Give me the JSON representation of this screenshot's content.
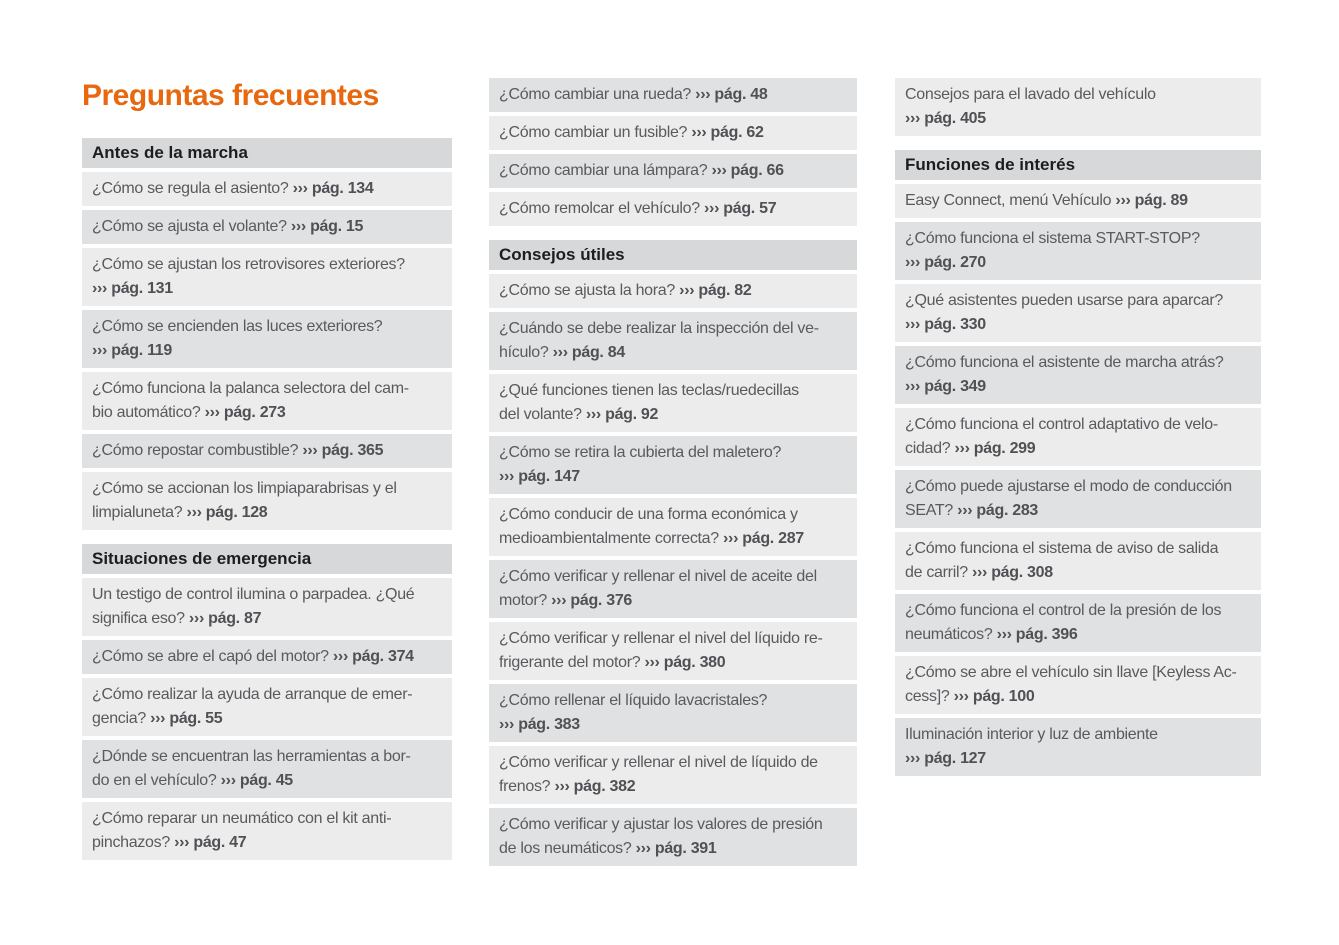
{
  "title": "Preguntas frecuentes",
  "colors": {
    "accent_orange": "#e8680f",
    "page_bg": "#ffffff",
    "header_row_bg": "#d7d8d9",
    "row_bg_light": "#ececed",
    "row_bg_dark": "#e0e1e2",
    "header_text": "#1d1d1f",
    "question_text": "#595a5d",
    "reference_text": "#505155"
  },
  "reference_marker": "›››",
  "columns": [
    {
      "blocks": [
        {
          "type": "header",
          "text": "Antes de la marcha"
        },
        {
          "type": "item",
          "tone": "light",
          "q": "¿Cómo se regula el asiento?",
          "ref": "››› pág. 134"
        },
        {
          "type": "item",
          "tone": "dark",
          "q": "¿Cómo se ajusta el volante?",
          "ref": "››› pág. 15"
        },
        {
          "type": "item",
          "tone": "light",
          "q": "¿Cómo se ajustan los retrovisores exteriores?\n",
          "ref": "››› pág. 131"
        },
        {
          "type": "item",
          "tone": "dark",
          "q": "¿Cómo se encienden las luces exteriores?\n",
          "ref": "››› pág. 119"
        },
        {
          "type": "item",
          "tone": "light",
          "q": "¿Cómo funciona la palanca selectora del cam-\nbio automático?",
          "ref": "››› pág. 273"
        },
        {
          "type": "item",
          "tone": "dark",
          "q": "¿Cómo repostar combustible?",
          "ref": "››› pág. 365"
        },
        {
          "type": "item",
          "tone": "light",
          "q": "¿Cómo se accionan los limpiaparabrisas y el\nlimpialuneta?",
          "ref": "››› pág. 128"
        },
        {
          "type": "header",
          "text": "Situaciones de emergencia"
        },
        {
          "type": "item",
          "tone": "light",
          "q": "Un testigo de control ilumina o parpadea. ¿Qué\nsignifica eso?",
          "ref": "››› pág. 87"
        },
        {
          "type": "item",
          "tone": "dark",
          "q": "¿Cómo se abre el capó del motor?",
          "ref": "››› pág. 374"
        },
        {
          "type": "item",
          "tone": "light",
          "q": "¿Cómo realizar la ayuda de arranque de emer-\ngencia?",
          "ref": "››› pág. 55"
        },
        {
          "type": "item",
          "tone": "dark",
          "q": "¿Dónde se encuentran las herramientas a bor-\ndo en el vehículo?",
          "ref": "››› pág. 45"
        },
        {
          "type": "item",
          "tone": "light",
          "q": "¿Cómo reparar un neumático con el kit anti-\npinchazos?",
          "ref": "››› pág. 47"
        }
      ]
    },
    {
      "blocks": [
        {
          "type": "item",
          "tone": "dark",
          "q": "¿Cómo cambiar una rueda?",
          "ref": "››› pág. 48"
        },
        {
          "type": "item",
          "tone": "light",
          "q": "¿Cómo cambiar un fusible?",
          "ref": "››› pág. 62"
        },
        {
          "type": "item",
          "tone": "dark",
          "q": "¿Cómo cambiar una lámpara?",
          "ref": "››› pág. 66"
        },
        {
          "type": "item",
          "tone": "light",
          "q": "¿Cómo remolcar el vehículo?",
          "ref": "››› pág. 57"
        },
        {
          "type": "header",
          "text": "Consejos útiles"
        },
        {
          "type": "item",
          "tone": "light",
          "q": "¿Cómo se ajusta la hora?",
          "ref": "››› pág. 82"
        },
        {
          "type": "item",
          "tone": "dark",
          "q": "¿Cuándo se debe realizar la inspección del ve-\nhículo?",
          "ref": "››› pág. 84"
        },
        {
          "type": "item",
          "tone": "light",
          "q": "¿Qué funciones tienen las teclas/ruedecillas\ndel volante?",
          "ref": "››› pág. 92"
        },
        {
          "type": "item",
          "tone": "dark",
          "q": "¿Cómo se retira la cubierta del maletero?\n",
          "ref": "››› pág. 147"
        },
        {
          "type": "item",
          "tone": "light",
          "q": "¿Cómo conducir de una forma económica y\nmedioambientalmente correcta?",
          "ref": "››› pág. 287"
        },
        {
          "type": "item",
          "tone": "dark",
          "q": "¿Cómo verificar y rellenar el nivel de aceite del\nmotor?",
          "ref": "››› pág. 376"
        },
        {
          "type": "item",
          "tone": "light",
          "q": "¿Cómo verificar y rellenar el nivel del líquido re-\nfrigerante del motor?",
          "ref": "››› pág. 380"
        },
        {
          "type": "item",
          "tone": "dark",
          "q": "¿Cómo rellenar el líquido lavacristales?\n",
          "ref": "››› pág. 383"
        },
        {
          "type": "item",
          "tone": "light",
          "q": "¿Cómo verificar y rellenar el nivel de líquido de\nfrenos?",
          "ref": "››› pág. 382"
        },
        {
          "type": "item",
          "tone": "dark",
          "q": "¿Cómo verificar y ajustar los valores de presión\nde los neumáticos?",
          "ref": "››› pág. 391"
        }
      ]
    },
    {
      "blocks": [
        {
          "type": "item",
          "tone": "light",
          "q": "Consejos para el lavado del vehículo\n",
          "ref": "››› pág. 405"
        },
        {
          "type": "header",
          "text": "Funciones de interés"
        },
        {
          "type": "item",
          "tone": "light",
          "q": "Easy Connect, menú Vehículo",
          "ref": "››› pág. 89"
        },
        {
          "type": "item",
          "tone": "dark",
          "q": "¿Cómo funciona el sistema START-STOP?\n",
          "ref": "››› pág. 270"
        },
        {
          "type": "item",
          "tone": "light",
          "q": "¿Qué asistentes pueden usarse para aparcar?\n",
          "ref": "››› pág. 330"
        },
        {
          "type": "item",
          "tone": "dark",
          "q": "¿Cómo funciona el asistente de marcha atrás?\n",
          "ref": "››› pág. 349"
        },
        {
          "type": "item",
          "tone": "light",
          "q": "¿Cómo funciona el control adaptativo de velo-\ncidad?",
          "ref": "››› pág. 299"
        },
        {
          "type": "item",
          "tone": "dark",
          "q": "¿Cómo puede ajustarse el modo de conducción\nSEAT?",
          "ref": "››› pág. 283"
        },
        {
          "type": "item",
          "tone": "light",
          "q": "¿Cómo funciona el sistema de aviso de salida\nde carril?",
          "ref": "››› pág. 308"
        },
        {
          "type": "item",
          "tone": "dark",
          "q": "¿Cómo funciona el control de la presión de los\nneumáticos?",
          "ref": "››› pág. 396"
        },
        {
          "type": "item",
          "tone": "light",
          "q": "¿Cómo se abre el vehículo sin llave [Keyless Ac-\ncess]?",
          "ref": "››› pág. 100"
        },
        {
          "type": "item",
          "tone": "dark",
          "q": "Iluminación interior y luz de ambiente\n",
          "ref": "››› pág. 127"
        }
      ]
    }
  ]
}
